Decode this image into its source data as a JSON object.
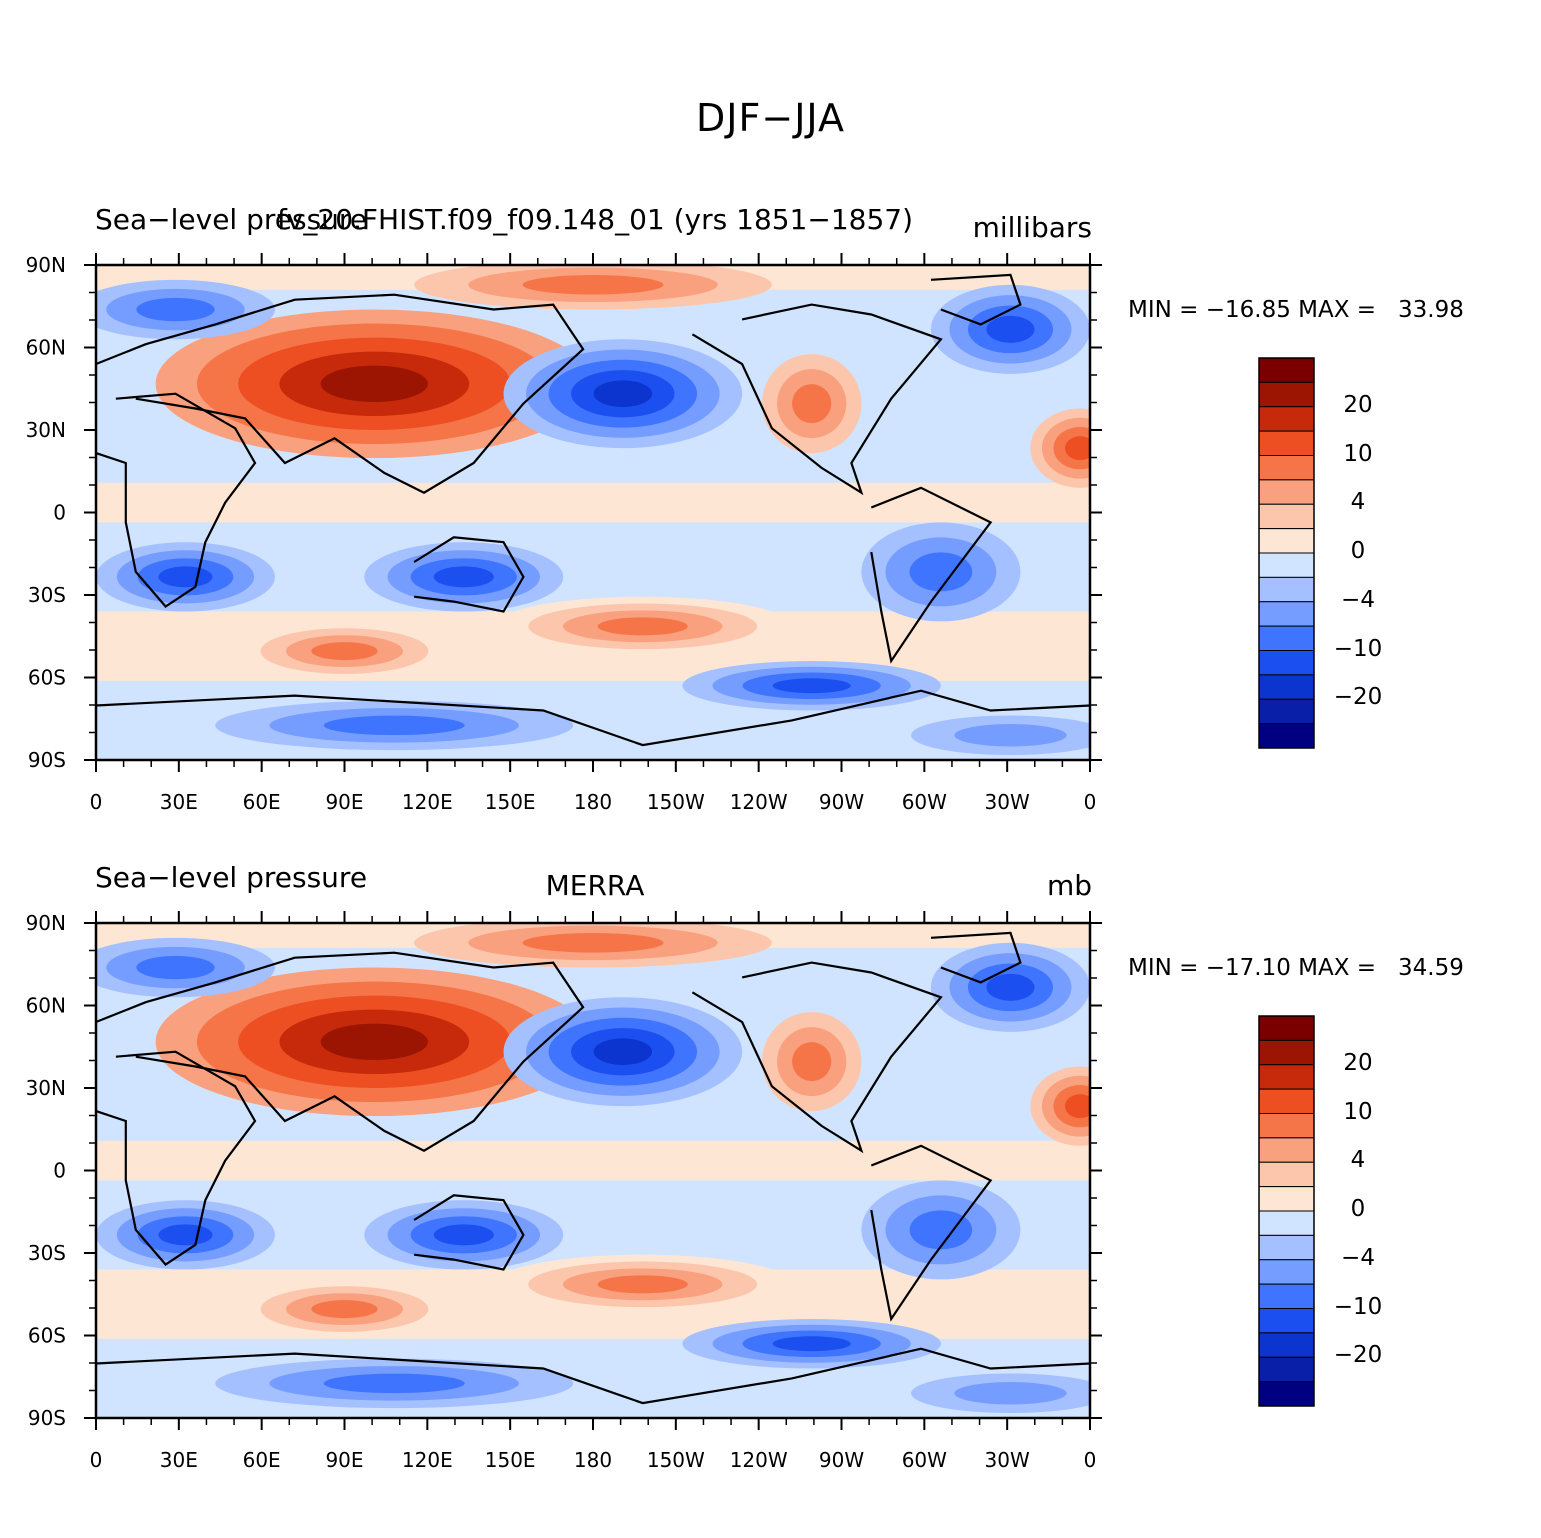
{
  "title": "DJF−JJA",
  "colors": [
    "#000080",
    "#0a1fa8",
    "#0c35cf",
    "#1c4ff0",
    "#3f74ff",
    "#759dff",
    "#a4c0ff",
    "#d0e4ff",
    "#fde6d4",
    "#fcc6ad",
    "#f9a07e",
    "#f57548",
    "#ee4f22",
    "#c72a0a",
    "#9c1503",
    "#7a0000"
  ],
  "legend_labels": [
    "20",
    "10",
    "4",
    "0",
    "−4",
    "−10",
    "−20"
  ],
  "x_ticks": [
    "0",
    "30E",
    "60E",
    "90E",
    "120E",
    "150E",
    "180",
    "150W",
    "120W",
    "90W",
    "60W",
    "30W",
    "0"
  ],
  "y_ticks": [
    "90N",
    "60N",
    "30N",
    "0",
    "30S",
    "60S",
    "90S"
  ],
  "panels": [
    {
      "left": "Sea−level pressure",
      "center": "fv_20.FHIST.f09_f09.148_01 (yrs 1851−1857)",
      "right": "millibars",
      "minmax": "MIN = −16.85 MAX =   33.98"
    },
    {
      "left": "Sea−level pressure",
      "center": "MERRA",
      "right": "mb",
      "minmax": "MIN = −17.10 MAX =   34.59"
    }
  ]
}
